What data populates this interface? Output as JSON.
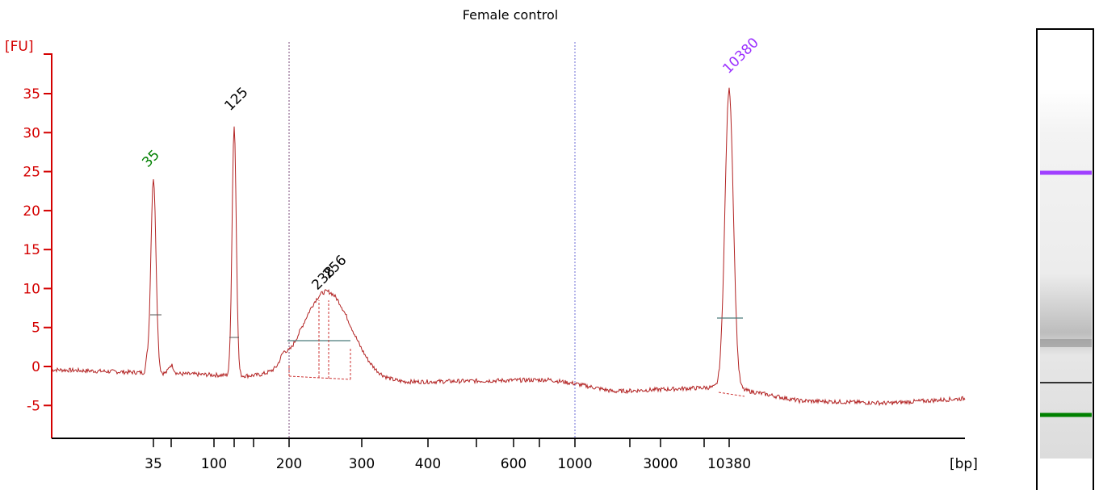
{
  "chart_data": {
    "type": "line",
    "title": "Female control",
    "ylabel": "[FU]",
    "xlabel": "[bp]",
    "y_ticks": [
      35,
      30,
      25,
      20,
      15,
      10,
      5,
      0,
      -5
    ],
    "x_tick_labels": [
      "35",
      "100",
      "200",
      "300",
      "400",
      "600",
      "1000",
      "3000",
      "10380"
    ],
    "ylim": [
      -9,
      40
    ],
    "grid": false,
    "peaks": [
      {
        "label": "35",
        "fu": 25,
        "color": "#008000"
      },
      {
        "label": "125",
        "fu": 32,
        "color": "#000000"
      },
      {
        "label": "238",
        "fu": 10,
        "color": "#000000"
      },
      {
        "label": "256",
        "fu": 10,
        "color": "#000000"
      },
      {
        "label": "10380",
        "fu": 37,
        "color": "#9b30ff"
      }
    ],
    "trace_color": "#b22222",
    "axis_color": "#d40000"
  },
  "gel": {
    "bands": [
      {
        "name": "upper-marker",
        "color": "#a040ff"
      },
      {
        "name": "sample-smear",
        "color": "#888888"
      },
      {
        "name": "thin-band",
        "color": "#333333"
      },
      {
        "name": "lower-marker",
        "color": "#008000"
      }
    ]
  }
}
